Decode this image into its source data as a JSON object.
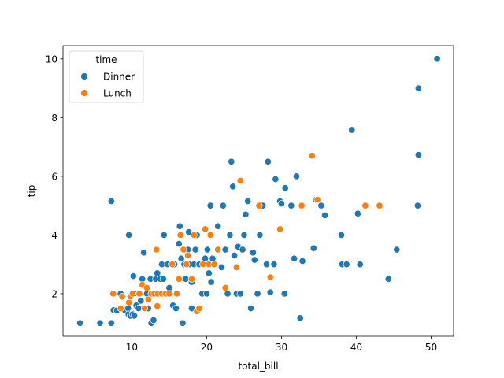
{
  "chart_data": {
    "type": "scatter",
    "xlabel": "total_bill",
    "ylabel": "tip",
    "xlim": [
      0.8,
      53
    ],
    "ylim": [
      0.55,
      10.45
    ],
    "x_ticks": [
      10,
      20,
      30,
      40,
      50
    ],
    "y_ticks": [
      2,
      4,
      6,
      8,
      10
    ],
    "grid": false,
    "legend": {
      "title": "time",
      "placement": "top-left"
    },
    "series": [
      {
        "name": "Dinner",
        "color": "#1f77b4",
        "points": [
          [
            3.07,
            1.0
          ],
          [
            5.75,
            1.0
          ],
          [
            7.25,
            1.0
          ],
          [
            7.25,
            5.15
          ],
          [
            7.56,
            1.44
          ],
          [
            8.0,
            1.43
          ],
          [
            8.5,
            2.0
          ],
          [
            9.0,
            1.45
          ],
          [
            9.5,
            1.5
          ],
          [
            9.55,
            1.3
          ],
          [
            9.6,
            4.0
          ],
          [
            9.8,
            1.25
          ],
          [
            10.1,
            1.3
          ],
          [
            10.2,
            2.6
          ],
          [
            10.3,
            2.0
          ],
          [
            10.33,
            1.25
          ],
          [
            10.6,
            1.6
          ],
          [
            10.9,
            1.5
          ],
          [
            11.0,
            2.0
          ],
          [
            11.2,
            1.76
          ],
          [
            11.4,
            2.5
          ],
          [
            11.6,
            3.4
          ],
          [
            12.0,
            2.0
          ],
          [
            12.2,
            1.5
          ],
          [
            12.5,
            2.5
          ],
          [
            12.6,
            1.0
          ],
          [
            12.9,
            1.1
          ],
          [
            13.0,
            2.0
          ],
          [
            13.2,
            2.5
          ],
          [
            13.4,
            2.7
          ],
          [
            13.5,
            2.0
          ],
          [
            13.8,
            2.5
          ],
          [
            14.0,
            3.0
          ],
          [
            14.2,
            2.5
          ],
          [
            14.3,
            4.0
          ],
          [
            14.5,
            2.0
          ],
          [
            14.8,
            3.0
          ],
          [
            15.0,
            2.2
          ],
          [
            15.3,
            3.0
          ],
          [
            15.5,
            1.6
          ],
          [
            15.7,
            3.0
          ],
          [
            15.9,
            1.5
          ],
          [
            16.0,
            2.0
          ],
          [
            16.3,
            3.7
          ],
          [
            16.4,
            4.3
          ],
          [
            16.6,
            3.2
          ],
          [
            16.8,
            1.0
          ],
          [
            17.0,
            3.0
          ],
          [
            17.2,
            2.5
          ],
          [
            17.5,
            3.5
          ],
          [
            17.6,
            4.1
          ],
          [
            17.8,
            3.0
          ],
          [
            18.0,
            2.4
          ],
          [
            18.0,
            1.5
          ],
          [
            18.3,
            3.0
          ],
          [
            18.5,
            3.5
          ],
          [
            18.7,
            4.0
          ],
          [
            19.0,
            3.0
          ],
          [
            19.4,
            2.0
          ],
          [
            19.8,
            3.2
          ],
          [
            20.0,
            2.0
          ],
          [
            20.1,
            3.5
          ],
          [
            20.3,
            2.7
          ],
          [
            20.5,
            5.0
          ],
          [
            20.6,
            2.4
          ],
          [
            20.8,
            3.2
          ],
          [
            21.0,
            3.0
          ],
          [
            21.5,
            4.3
          ],
          [
            22.0,
            2.9
          ],
          [
            22.2,
            5.0
          ],
          [
            22.5,
            3.5
          ],
          [
            22.8,
            2.0
          ],
          [
            23.1,
            4.0
          ],
          [
            23.3,
            6.5
          ],
          [
            23.5,
            5.65
          ],
          [
            23.7,
            3.3
          ],
          [
            24.0,
            2.0
          ],
          [
            24.2,
            3.6
          ],
          [
            24.5,
            2.0
          ],
          [
            24.8,
            3.5
          ],
          [
            25.0,
            4.0
          ],
          [
            25.2,
            4.7
          ],
          [
            25.5,
            5.15
          ],
          [
            25.9,
            1.5
          ],
          [
            26.2,
            3.4
          ],
          [
            26.4,
            3.15
          ],
          [
            26.8,
            2.0
          ],
          [
            27.1,
            4.0
          ],
          [
            27.5,
            5.0
          ],
          [
            28.0,
            3.0
          ],
          [
            28.2,
            6.5
          ],
          [
            28.5,
            2.05
          ],
          [
            29.0,
            3.0
          ],
          [
            29.2,
            5.9
          ],
          [
            29.8,
            5.15
          ],
          [
            30.0,
            5.07
          ],
          [
            30.4,
            2.0
          ],
          [
            30.5,
            5.6
          ],
          [
            31.3,
            5.0
          ],
          [
            31.7,
            3.2
          ],
          [
            32.0,
            6.0
          ],
          [
            32.5,
            1.17
          ],
          [
            32.8,
            3.11
          ],
          [
            34.3,
            3.55
          ],
          [
            34.6,
            5.2
          ],
          [
            35.3,
            5.0
          ],
          [
            35.8,
            4.67
          ],
          [
            38.0,
            4.0
          ],
          [
            38.1,
            3.0
          ],
          [
            38.7,
            3.0
          ],
          [
            39.4,
            7.58
          ],
          [
            40.2,
            4.73
          ],
          [
            40.5,
            3.0
          ],
          [
            44.3,
            2.5
          ],
          [
            45.4,
            3.5
          ],
          [
            48.2,
            5.0
          ],
          [
            48.3,
            6.73
          ],
          [
            48.3,
            9.0
          ],
          [
            50.8,
            10.0
          ]
        ]
      },
      {
        "name": "Lunch",
        "color": "#ff7f0e",
        "points": [
          [
            7.5,
            2.0
          ],
          [
            8.5,
            1.5
          ],
          [
            8.7,
            1.9
          ],
          [
            9.6,
            1.7
          ],
          [
            9.8,
            1.9
          ],
          [
            10.1,
            2.0
          ],
          [
            11.0,
            2.0
          ],
          [
            11.4,
            2.3
          ],
          [
            11.7,
            1.5
          ],
          [
            12.0,
            2.2
          ],
          [
            12.2,
            1.8
          ],
          [
            12.6,
            2.0
          ],
          [
            13.0,
            2.0
          ],
          [
            13.3,
            3.5
          ],
          [
            13.4,
            1.58
          ],
          [
            13.5,
            2.0
          ],
          [
            14.0,
            2.0
          ],
          [
            14.5,
            2.0
          ],
          [
            15.0,
            2.0
          ],
          [
            15.4,
            3.0
          ],
          [
            16.0,
            2.0
          ],
          [
            16.3,
            2.5
          ],
          [
            16.5,
            4.0
          ],
          [
            16.9,
            3.5
          ],
          [
            17.3,
            3.0
          ],
          [
            17.5,
            3.3
          ],
          [
            18.0,
            2.5
          ],
          [
            18.3,
            4.0
          ],
          [
            18.7,
            1.4
          ],
          [
            19.0,
            1.5
          ],
          [
            19.5,
            3.0
          ],
          [
            19.8,
            4.2
          ],
          [
            20.3,
            3.0
          ],
          [
            20.5,
            4.0
          ],
          [
            21.0,
            3.0
          ],
          [
            21.5,
            3.5
          ],
          [
            22.5,
            2.2
          ],
          [
            24.0,
            2.9
          ],
          [
            24.5,
            5.85
          ],
          [
            27.0,
            5.0
          ],
          [
            28.5,
            2.56
          ],
          [
            29.8,
            4.2
          ],
          [
            32.7,
            5.0
          ],
          [
            34.1,
            6.7
          ],
          [
            34.8,
            5.2
          ],
          [
            41.2,
            5.0
          ],
          [
            43.1,
            5.0
          ]
        ]
      }
    ]
  }
}
